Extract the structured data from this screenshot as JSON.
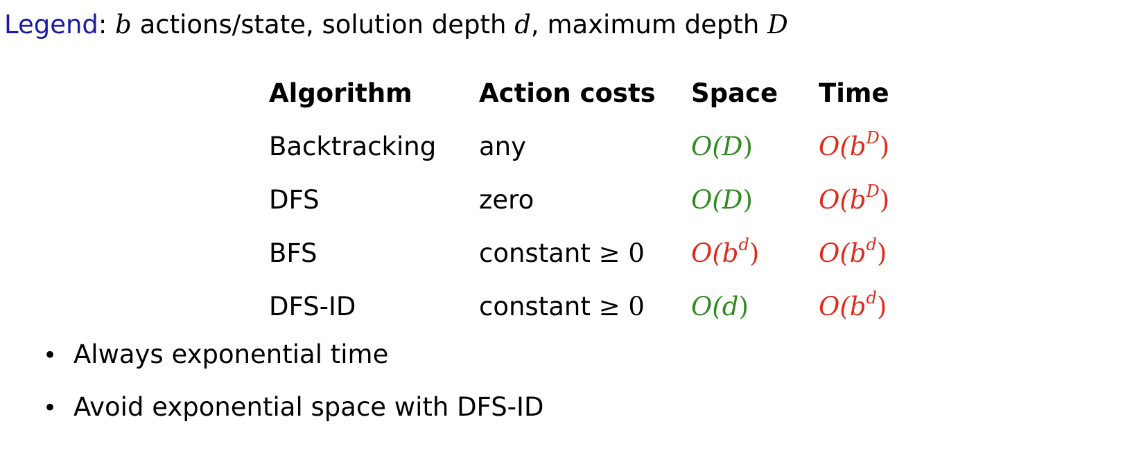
{
  "legend": {
    "key": "Legend",
    "colon": ":",
    "var_b": "b",
    "text_1": " actions/state, solution depth ",
    "var_d": "d",
    "text_2": ", maximum depth ",
    "var_D": "D"
  },
  "table": {
    "headers": [
      "Algorithm",
      "Action costs",
      "Space",
      "Time"
    ],
    "rows": [
      {
        "algorithm": "Backtracking",
        "costs": "any",
        "space": {
          "o": "O(",
          "base": "D",
          "exp": "",
          "close": ")",
          "color": "#2e8b1e"
        },
        "time": {
          "o": "O(",
          "base": "b",
          "exp": "D",
          "close": ")",
          "color": "#e02a1a"
        }
      },
      {
        "algorithm": "DFS",
        "costs": "zero",
        "space": {
          "o": "O(",
          "base": "D",
          "exp": "",
          "close": ")",
          "color": "#2e8b1e"
        },
        "time": {
          "o": "O(",
          "base": "b",
          "exp": "D",
          "close": ")",
          "color": "#e02a1a"
        }
      },
      {
        "algorithm": "BFS",
        "costs": "constant",
        "costs_math": "≥ 0",
        "space": {
          "o": "O(",
          "base": "b",
          "exp": "d",
          "close": ")",
          "color": "#e02a1a"
        },
        "time": {
          "o": "O(",
          "base": "b",
          "exp": "d",
          "close": ")",
          "color": "#e02a1a"
        }
      },
      {
        "algorithm": "DFS-ID",
        "costs": "constant",
        "costs_math": "≥ 0",
        "space": {
          "o": "O(",
          "base": "d",
          "exp": "",
          "close": ")",
          "color": "#2e8b1e"
        },
        "time": {
          "o": "O(",
          "base": "b",
          "exp": "d",
          "close": ")",
          "color": "#e02a1a"
        }
      }
    ]
  },
  "bullets": [
    "Always exponential time",
    "Avoid exponential space with DFS-ID"
  ],
  "bullet_glyph": "•",
  "colors": {
    "legend_key": "#1a1aa6",
    "good": "#2e8b1e",
    "bad": "#e02a1a"
  }
}
